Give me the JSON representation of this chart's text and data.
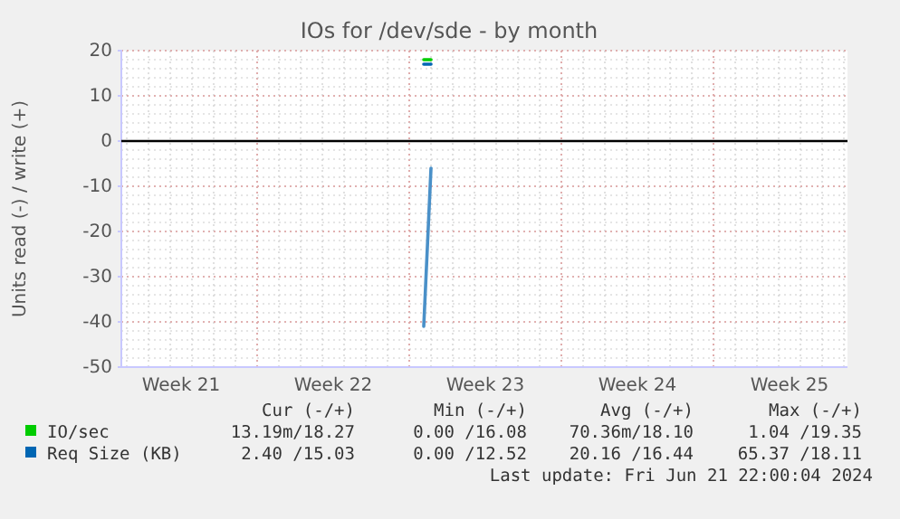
{
  "chart_data": {
    "type": "line",
    "title": "IOs for /dev/sde - by month",
    "ylabel": "Units read (-) / write (+)",
    "xlim": [
      "2024-05-20T18:00",
      "2024-06-23T04:00"
    ],
    "xticks": [
      {
        "value": "2024-05-23T12:00",
        "label": "Week 21"
      },
      {
        "value": "2024-05-30T12:00",
        "label": "Week 22"
      },
      {
        "value": "2024-06-06T12:00",
        "label": "Week 23"
      },
      {
        "value": "2024-06-13T12:00",
        "label": "Week 24"
      },
      {
        "value": "2024-06-20T12:00",
        "label": "Week 25"
      }
    ],
    "ylim": [
      -50,
      20
    ],
    "yticks": [
      -50,
      -40,
      -30,
      -20,
      -10,
      0,
      10,
      20
    ],
    "grid": true,
    "legend": "bottom",
    "x": [
      "2024-06-03T16:00",
      "2024-06-04T00:00"
    ],
    "series": [
      {
        "name": "IO/sec",
        "color": "#00cc00",
        "values": [
          18,
          18
        ]
      },
      {
        "name": "Req Size (KB)",
        "color": "#0066b3",
        "values": [
          17,
          17
        ]
      },
      {
        "color": "#4a90c8",
        "values": [
          -41,
          -6
        ]
      }
    ],
    "ref_lines": [
      {
        "axis": "y",
        "value": 0,
        "color": "#000000"
      }
    ],
    "annotations": [
      "Cur (-/+)",
      "Min (-/+)",
      "Avg (-/+)",
      "Max (-/+)",
      "13.19m/18.27",
      "0.00 /16.08",
      "70.36m/18.10",
      "1.04 /19.35",
      "2.40 /15.03",
      "0.00 /12.52",
      "20.16 /16.44",
      "65.37 /18.11",
      "Last update: Fri Jun 21 22:00:04 2024"
    ]
  }
}
